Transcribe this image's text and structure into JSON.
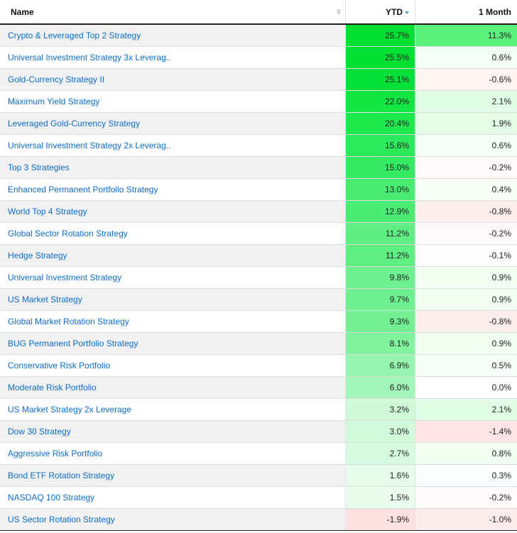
{
  "columns": {
    "name": "Name",
    "ytd": "YTD",
    "month": "1 Month",
    "sorted_by": "YTD",
    "sort_direction": "descending"
  },
  "colors": {
    "link": "#0b6cc9",
    "positive_strong": "#00e032",
    "positive_light": "#e8fde9",
    "negative": "#fde2e2"
  },
  "rows": [
    {
      "name": "Crypto & Leveraged Top 2 Strategy",
      "ytd": "25.7%",
      "month": "11.3%",
      "ytd_bg": "#00e032",
      "month_bg": "#5cf07c"
    },
    {
      "name": "Universal Investment Strategy 3x Leverag..",
      "ytd": "25.5%",
      "month": "0.6%",
      "ytd_bg": "#00e133",
      "month_bg": "#f4fff5"
    },
    {
      "name": "Gold-Currency Strategy II",
      "ytd": "25.1%",
      "month": "-0.6%",
      "ytd_bg": "#05e237",
      "month_bg": "#fef4f4"
    },
    {
      "name": "Maximum Yield Strategy",
      "ytd": "22.0%",
      "month": "2.1%",
      "ytd_bg": "#12e642",
      "month_bg": "#e2fde6"
    },
    {
      "name": "Leveraged Gold-Currency Strategy",
      "ytd": "20.4%",
      "month": "1.9%",
      "ytd_bg": "#1ee84c",
      "month_bg": "#e4fde7"
    },
    {
      "name": "Universal Investment Strategy 2x Leverag..",
      "ytd": "15.6%",
      "month": "0.6%",
      "ytd_bg": "#2ce95a",
      "month_bg": "#f4fff5"
    },
    {
      "name": "Top 3 Strategies",
      "ytd": "15.0%",
      "month": "-0.2%",
      "ytd_bg": "#34ea61",
      "month_bg": "#fffafa"
    },
    {
      "name": "Enhanced Permanent Portfolio Strategy",
      "ytd": "13.0%",
      "month": "0.4%",
      "ytd_bg": "#4aec72",
      "month_bg": "#f7fff8"
    },
    {
      "name": "World Top 4 Strategy",
      "ytd": "12.9%",
      "month": "-0.8%",
      "ytd_bg": "#4bec73",
      "month_bg": "#fdeeee"
    },
    {
      "name": "Global Sector Rotation Strategy",
      "ytd": "11.2%",
      "month": "-0.2%",
      "ytd_bg": "#5eee82",
      "month_bg": "#fffafa"
    },
    {
      "name": "Hedge Strategy",
      "ytd": "11.2%",
      "month": "-0.1%",
      "ytd_bg": "#5eee82",
      "month_bg": "#fffcfc"
    },
    {
      "name": "Universal Investment Strategy",
      "ytd": "9.8%",
      "month": "0.9%",
      "ytd_bg": "#6df08f",
      "month_bg": "#f0fff2"
    },
    {
      "name": "US Market Strategy",
      "ytd": "9.7%",
      "month": "0.9%",
      "ytd_bg": "#6ef090",
      "month_bg": "#f0fff2"
    },
    {
      "name": "Global Market Rotation Strategy",
      "ytd": "9.3%",
      "month": "-0.8%",
      "ytd_bg": "#72f093",
      "month_bg": "#fdeeee"
    },
    {
      "name": "BUG Permanent Portfolio Strategy",
      "ytd": "8.1%",
      "month": "0.9%",
      "ytd_bg": "#80f29e",
      "month_bg": "#f0fff2"
    },
    {
      "name": "Conservative Risk Portfolio",
      "ytd": "6.9%",
      "month": "0.5%",
      "ytd_bg": "#95f5ae",
      "month_bg": "#f6fff7"
    },
    {
      "name": "Moderate Risk Portfolio",
      "ytd": "6.0%",
      "month": "0.0%",
      "ytd_bg": "#a3f6b9",
      "month_bg": "#ffffff"
    },
    {
      "name": "US Market Strategy 2x Leverage",
      "ytd": "3.2%",
      "month": "2.1%",
      "ytd_bg": "#cefad8",
      "month_bg": "#e2fde6"
    },
    {
      "name": "Dow 30 Strategy",
      "ytd": "3.0%",
      "month": "-1.4%",
      "ytd_bg": "#d2fbdc",
      "month_bg": "#fde5e5"
    },
    {
      "name": "Aggressive Risk Portfolio",
      "ytd": "2.7%",
      "month": "0.8%",
      "ytd_bg": "#d7fbe0",
      "month_bg": "#f2fff3"
    },
    {
      "name": "Bond ETF Rotation Strategy",
      "ytd": "1.6%",
      "month": "0.3%",
      "ytd_bg": "#e7fdec",
      "month_bg": "#f9fffa"
    },
    {
      "name": "NASDAQ 100 Strategy",
      "ytd": "1.5%",
      "month": "-0.2%",
      "ytd_bg": "#e9fdee",
      "month_bg": "#fffafa"
    },
    {
      "name": "US Sector Rotation Strategy",
      "ytd": "-1.9%",
      "month": "-1.0%",
      "ytd_bg": "#fde0e0",
      "month_bg": "#fdebeb"
    }
  ]
}
